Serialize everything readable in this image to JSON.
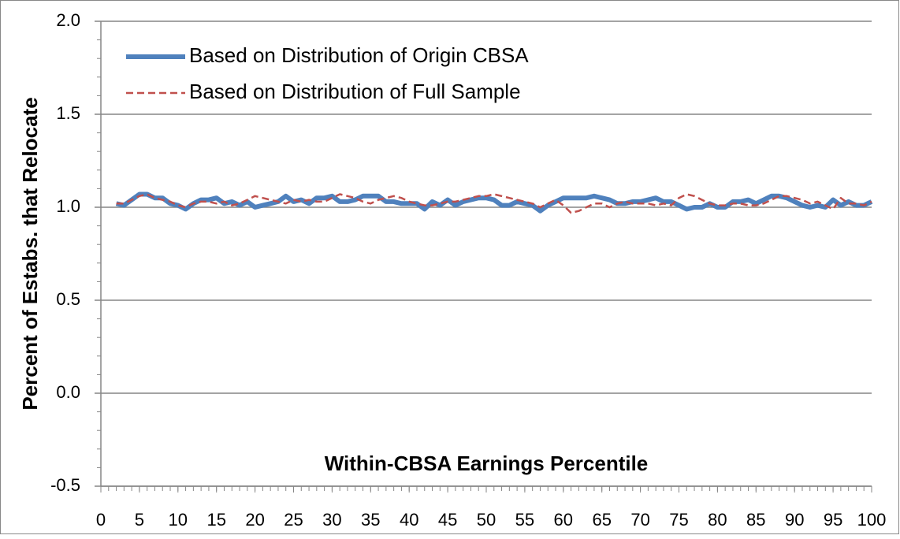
{
  "chart_data": {
    "type": "line",
    "xlabel": "Within-CBSA Earnings Percentile",
    "ylabel": "Percent of Estabs. that Relocate",
    "x": [
      2,
      3,
      4,
      5,
      6,
      7,
      8,
      9,
      10,
      11,
      12,
      13,
      14,
      15,
      16,
      17,
      18,
      19,
      20,
      21,
      22,
      23,
      24,
      25,
      26,
      27,
      28,
      29,
      30,
      31,
      32,
      33,
      34,
      35,
      36,
      37,
      38,
      39,
      40,
      41,
      42,
      43,
      44,
      45,
      46,
      47,
      48,
      49,
      50,
      51,
      52,
      53,
      54,
      55,
      56,
      57,
      58,
      59,
      60,
      61,
      62,
      63,
      64,
      65,
      66,
      67,
      68,
      69,
      70,
      71,
      72,
      73,
      74,
      75,
      76,
      77,
      78,
      79,
      80,
      81,
      82,
      83,
      84,
      85,
      86,
      87,
      88,
      89,
      90,
      91,
      92,
      93,
      94,
      95,
      96,
      97,
      98,
      99,
      100
    ],
    "series": [
      {
        "name": "Based on Distribution of Origin CBSA",
        "color": "#4f81bd",
        "style": "solid",
        "values": [
          1.02,
          1.01,
          1.04,
          1.07,
          1.07,
          1.05,
          1.05,
          1.02,
          1.01,
          0.99,
          1.02,
          1.04,
          1.04,
          1.05,
          1.02,
          1.03,
          1.01,
          1.03,
          1.0,
          1.01,
          1.02,
          1.03,
          1.06,
          1.03,
          1.04,
          1.02,
          1.05,
          1.05,
          1.06,
          1.03,
          1.03,
          1.04,
          1.06,
          1.06,
          1.06,
          1.03,
          1.03,
          1.02,
          1.02,
          1.02,
          0.99,
          1.03,
          1.01,
          1.04,
          1.01,
          1.03,
          1.04,
          1.05,
          1.05,
          1.04,
          1.01,
          1.01,
          1.03,
          1.02,
          1.01,
          0.98,
          1.01,
          1.03,
          1.05,
          1.05,
          1.05,
          1.05,
          1.06,
          1.05,
          1.04,
          1.02,
          1.02,
          1.03,
          1.03,
          1.04,
          1.05,
          1.03,
          1.03,
          1.01,
          0.99,
          1.0,
          1.0,
          1.02,
          1.0,
          1.0,
          1.03,
          1.03,
          1.04,
          1.02,
          1.04,
          1.06,
          1.06,
          1.05,
          1.03,
          1.01,
          1.0,
          1.01,
          1.0,
          1.04,
          1.01,
          1.03,
          1.01,
          1.01,
          1.03
        ]
      },
      {
        "name": "Based on Distribution of Full Sample",
        "color": "#c0504d",
        "style": "dashed",
        "values": [
          1.02,
          1.02,
          1.04,
          1.06,
          1.07,
          1.05,
          1.04,
          1.03,
          1.01,
          1.0,
          1.02,
          1.03,
          1.03,
          1.02,
          1.03,
          1.01,
          1.02,
          1.04,
          1.06,
          1.05,
          1.04,
          1.03,
          1.02,
          1.04,
          1.03,
          1.04,
          1.03,
          1.03,
          1.05,
          1.07,
          1.06,
          1.05,
          1.03,
          1.02,
          1.04,
          1.05,
          1.06,
          1.05,
          1.03,
          1.02,
          1.01,
          1.01,
          1.02,
          1.03,
          1.03,
          1.04,
          1.05,
          1.06,
          1.06,
          1.07,
          1.06,
          1.05,
          1.04,
          1.03,
          1.02,
          1.0,
          1.02,
          1.04,
          1.01,
          0.97,
          0.98,
          1.0,
          1.02,
          1.02,
          1.0,
          1.02,
          1.03,
          1.02,
          1.02,
          1.02,
          1.01,
          1.02,
          1.01,
          1.05,
          1.07,
          1.06,
          1.04,
          1.02,
          1.01,
          1.01,
          1.02,
          1.02,
          1.01,
          1.01,
          1.02,
          1.04,
          1.06,
          1.06,
          1.05,
          1.04,
          1.02,
          1.03,
          1.01,
          0.99,
          1.05,
          1.02,
          1.02,
          1.01,
          1.03
        ]
      }
    ],
    "xlim": [
      0,
      100
    ],
    "xticks": [
      0,
      5,
      10,
      15,
      20,
      25,
      30,
      35,
      40,
      45,
      50,
      55,
      60,
      65,
      70,
      75,
      80,
      85,
      90,
      95,
      100
    ],
    "ylim": [
      -0.5,
      2.0
    ],
    "yticks": [
      {
        "value": -0.5,
        "label": "-0.5"
      },
      {
        "value": 0,
        "label": "0.0"
      },
      {
        "value": 0.5,
        "label": "0.5"
      },
      {
        "value": 1,
        "label": "1.0"
      },
      {
        "value": 1.5,
        "label": "1.5"
      },
      {
        "value": 2,
        "label": "2.0"
      }
    ],
    "grid": true,
    "legend": "upper left"
  }
}
